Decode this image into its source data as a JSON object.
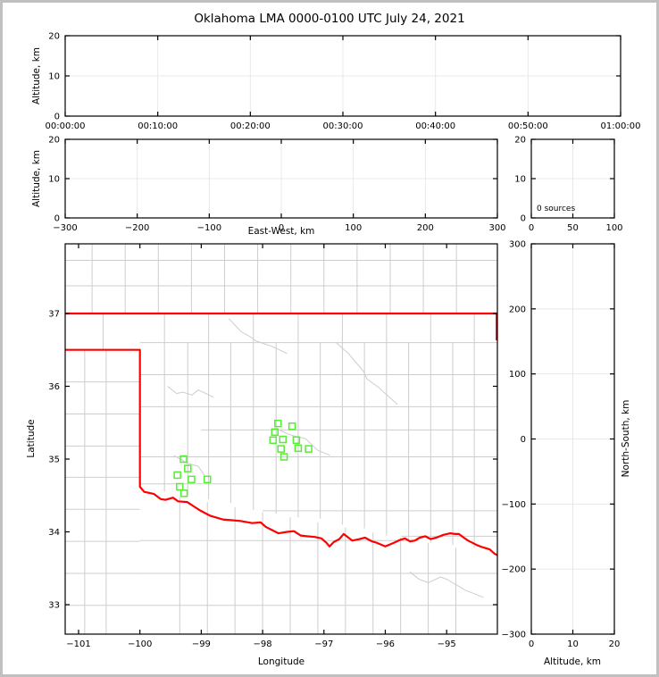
{
  "title": "Oklahoma LMA 0000-0100 UTC July 24, 2021",
  "colors": {
    "background": "#ffffff",
    "frame": "#c0c0c0",
    "axis": "#000000",
    "grid": "#e8e8e8",
    "county_line": "#cdcdcd",
    "state_border": "#ff0000",
    "source_marker": "#54ee33",
    "text": "#000000"
  },
  "chart_data": [
    {
      "id": "time_height",
      "type": "scatter",
      "title": "",
      "xlabel": "",
      "ylabel": "Altitude, km",
      "xlim": [
        0,
        60
      ],
      "ylim": [
        0,
        20
      ],
      "xticks": {
        "values": [
          0,
          10,
          20,
          30,
          40,
          50,
          60
        ],
        "labels": [
          "00:00:00",
          "00:10:00",
          "00:20:00",
          "00:30:00",
          "00:40:00",
          "00:50:00",
          "01:00:00"
        ]
      },
      "yticks": {
        "values": [
          0,
          10,
          20
        ],
        "labels": [
          "0",
          "10",
          "20"
        ]
      },
      "grid": true,
      "points": []
    },
    {
      "id": "ew_height",
      "type": "scatter",
      "title": "",
      "xlabel": "East-West, km",
      "ylabel": "Altitude, km",
      "xlim": [
        -300,
        300
      ],
      "ylim": [
        0,
        20
      ],
      "xticks": {
        "values": [
          -300,
          -200,
          -100,
          0,
          100,
          200,
          300
        ],
        "labels": [
          "−300",
          "−200",
          "−100",
          "0",
          "100",
          "200",
          "300"
        ]
      },
      "yticks": {
        "values": [
          0,
          10,
          20
        ],
        "labels": [
          "0",
          "10",
          "20"
        ]
      },
      "grid": true,
      "points": []
    },
    {
      "id": "alt_histogram",
      "type": "scatter",
      "title": "",
      "xlabel": "",
      "ylabel": "",
      "xlim": [
        0,
        100
      ],
      "ylim": [
        0,
        20
      ],
      "xticks": {
        "values": [
          0,
          50,
          100
        ],
        "labels": [
          "0",
          "50",
          "100"
        ]
      },
      "yticks": {
        "values": [
          0,
          10,
          20
        ],
        "labels": [
          "0",
          "10",
          "20"
        ]
      },
      "grid": true,
      "annotation": "0 sources",
      "points": []
    },
    {
      "id": "plan_map",
      "type": "scatter",
      "title": "",
      "xlabel": "Longitude",
      "ylabel": "Latitude",
      "xlim": [
        -101.218,
        -94.173
      ],
      "ylim": [
        32.595,
        37.957
      ],
      "xticks": {
        "values": [
          -101,
          -100,
          -99,
          -98,
          -97,
          -96,
          -95
        ],
        "labels": [
          "−101",
          "−100",
          "−99",
          "−98",
          "−97",
          "−96",
          "−95"
        ]
      },
      "yticks": {
        "values": [
          33,
          34,
          35,
          36,
          37
        ],
        "labels": [
          "33",
          "34",
          "35",
          "36",
          "37"
        ]
      },
      "grid": false,
      "marker": "open-square",
      "points": [
        [
          -97.75,
          35.49
        ],
        [
          -97.52,
          35.45
        ],
        [
          -97.8,
          35.37
        ],
        [
          -97.67,
          35.27
        ],
        [
          -97.83,
          35.26
        ],
        [
          -97.45,
          35.26
        ],
        [
          -97.7,
          35.14
        ],
        [
          -97.42,
          35.15
        ],
        [
          -97.25,
          35.14
        ],
        [
          -97.65,
          35.03
        ],
        [
          -99.29,
          35.0
        ],
        [
          -99.22,
          34.87
        ],
        [
          -99.39,
          34.78
        ],
        [
          -99.16,
          34.72
        ],
        [
          -98.9,
          34.72
        ],
        [
          -99.35,
          34.62
        ],
        [
          -99.28,
          34.53
        ]
      ]
    },
    {
      "id": "ns_height",
      "type": "scatter",
      "title": "",
      "xlabel": "Altitude, km",
      "ylabel": "North-South, km",
      "xlim": [
        0,
        20
      ],
      "ylim": [
        -300,
        300
      ],
      "xticks": {
        "values": [
          0,
          10,
          20
        ],
        "labels": [
          "0",
          "10",
          "20"
        ]
      },
      "yticks": {
        "values": [
          -300,
          -200,
          -100,
          0,
          100,
          200,
          300
        ],
        "labels": [
          "−300",
          "−200",
          "−100",
          "0",
          "100",
          "200",
          "300"
        ]
      },
      "grid": true,
      "points": []
    }
  ],
  "map_features": {
    "state_border": [
      [
        [
          -101.218,
          37.0
        ],
        [
          -94.173,
          37.0
        ]
      ],
      [
        [
          -94.185,
          37.0
        ],
        [
          -94.185,
          36.63
        ]
      ],
      [
        [
          -101.218,
          36.5
        ],
        [
          -100.0,
          36.5
        ],
        [
          -100.0,
          34.62
        ],
        [
          -99.93,
          34.55
        ],
        [
          -99.77,
          34.52
        ],
        [
          -99.66,
          34.45
        ],
        [
          -99.58,
          34.44
        ],
        [
          -99.46,
          34.47
        ],
        [
          -99.38,
          34.42
        ],
        [
          -99.23,
          34.41
        ],
        [
          -99.12,
          34.35
        ],
        [
          -99.01,
          34.29
        ],
        [
          -98.85,
          34.22
        ],
        [
          -98.65,
          34.17
        ],
        [
          -98.5,
          34.16
        ],
        [
          -98.36,
          34.15
        ],
        [
          -98.17,
          34.12
        ],
        [
          -98.03,
          34.13
        ],
        [
          -97.95,
          34.07
        ],
        [
          -97.86,
          34.03
        ],
        [
          -97.74,
          33.98
        ],
        [
          -97.6,
          34.0
        ],
        [
          -97.49,
          34.01
        ],
        [
          -97.38,
          33.95
        ],
        [
          -97.28,
          33.94
        ],
        [
          -97.15,
          33.93
        ],
        [
          -97.04,
          33.91
        ],
        [
          -96.96,
          33.85
        ],
        [
          -96.91,
          33.8
        ],
        [
          -96.84,
          33.86
        ],
        [
          -96.75,
          33.9
        ],
        [
          -96.68,
          33.97
        ],
        [
          -96.6,
          33.92
        ],
        [
          -96.54,
          33.88
        ],
        [
          -96.42,
          33.9
        ],
        [
          -96.33,
          33.92
        ],
        [
          -96.22,
          33.87
        ],
        [
          -96.14,
          33.85
        ],
        [
          -96.0,
          33.8
        ],
        [
          -95.86,
          33.85
        ],
        [
          -95.76,
          33.89
        ],
        [
          -95.68,
          33.91
        ],
        [
          -95.6,
          33.87
        ],
        [
          -95.52,
          33.88
        ],
        [
          -95.44,
          33.92
        ],
        [
          -95.35,
          33.94
        ],
        [
          -95.26,
          33.9
        ],
        [
          -95.17,
          33.92
        ],
        [
          -95.05,
          33.96
        ],
        [
          -94.94,
          33.98
        ],
        [
          -94.86,
          33.97
        ],
        [
          -94.8,
          33.97
        ],
        [
          -94.72,
          33.92
        ],
        [
          -94.65,
          33.88
        ],
        [
          -94.58,
          33.85
        ],
        [
          -94.51,
          33.82
        ],
        [
          -94.42,
          33.79
        ],
        [
          -94.3,
          33.76
        ],
        [
          -94.22,
          33.7
        ],
        [
          -94.173,
          33.68
        ]
      ]
    ],
    "county_lines": {
      "verticals": [
        [
          -100.78,
          37.0,
          37.957
        ],
        [
          -100.24,
          37.0,
          37.957
        ],
        [
          -99.7,
          37.0,
          37.957
        ],
        [
          -99.16,
          37.0,
          37.957
        ],
        [
          -98.62,
          37.0,
          37.957
        ],
        [
          -98.08,
          37.0,
          37.957
        ],
        [
          -97.54,
          37.0,
          37.957
        ],
        [
          -97.0,
          37.0,
          37.957
        ],
        [
          -96.46,
          37.0,
          37.957
        ],
        [
          -95.92,
          37.0,
          37.957
        ],
        [
          -95.38,
          37.0,
          37.957
        ],
        [
          -94.84,
          37.0,
          37.957
        ],
        [
          -100.6,
          36.5,
          37.0
        ],
        [
          -100.9,
          32.595,
          36.5
        ],
        [
          -100.55,
          32.595,
          36.5
        ],
        [
          -99.6,
          34.55,
          37.0
        ],
        [
          -99.22,
          34.5,
          36.6
        ],
        [
          -98.88,
          34.45,
          37.0
        ],
        [
          -98.52,
          34.4,
          36.6
        ],
        [
          -98.15,
          34.3,
          37.0
        ],
        [
          -97.78,
          34.25,
          36.6
        ],
        [
          -97.42,
          34.2,
          37.0
        ],
        [
          -97.06,
          34.18,
          36.6
        ],
        [
          -96.7,
          34.1,
          37.0
        ],
        [
          -96.34,
          34.05,
          36.6
        ],
        [
          -95.98,
          33.95,
          37.0
        ],
        [
          -95.62,
          33.9,
          36.6
        ],
        [
          -95.26,
          33.85,
          37.0
        ],
        [
          -94.9,
          33.82,
          36.6
        ],
        [
          -94.55,
          33.78,
          37.0
        ],
        [
          -99.35,
          32.595,
          34.48
        ],
        [
          -98.9,
          32.595,
          34.41
        ],
        [
          -98.45,
          32.595,
          34.34
        ],
        [
          -98.0,
          32.595,
          34.27
        ],
        [
          -97.55,
          32.595,
          34.2
        ],
        [
          -97.1,
          32.595,
          34.13
        ],
        [
          -96.65,
          32.595,
          34.06
        ],
        [
          -96.2,
          32.595,
          33.99
        ],
        [
          -95.75,
          32.595,
          33.92
        ],
        [
          -95.3,
          32.595,
          33.85
        ],
        [
          -94.85,
          32.595,
          33.78
        ]
      ],
      "horizontals": [
        [
          37.38,
          -101.218,
          -94.173
        ],
        [
          37.73,
          -101.218,
          -94.173
        ],
        [
          36.06,
          -101.218,
          -100.0
        ],
        [
          35.62,
          -101.218,
          -100.0
        ],
        [
          35.18,
          -101.218,
          -100.0
        ],
        [
          34.75,
          -101.218,
          -100.0
        ],
        [
          34.31,
          -101.218,
          -100.0
        ],
        [
          33.87,
          -101.218,
          -100.0
        ],
        [
          33.43,
          -101.218,
          -100.0
        ],
        [
          32.99,
          -101.218,
          -100.0
        ],
        [
          36.6,
          -100.0,
          -94.173
        ],
        [
          36.16,
          -100.0,
          -94.173
        ],
        [
          35.72,
          -100.0,
          -94.173
        ],
        [
          35.4,
          -99.0,
          -94.173
        ],
        [
          35.03,
          -100.0,
          -94.173
        ],
        [
          34.66,
          -100.0,
          -94.173
        ],
        [
          34.29,
          -98.0,
          -94.173
        ],
        [
          33.94,
          -95.74,
          -94.173
        ],
        [
          33.88,
          -100.0,
          -95.45
        ],
        [
          33.43,
          -100.0,
          -94.173
        ],
        [
          32.99,
          -100.0,
          -94.173
        ]
      ]
    },
    "rivers": [
      [
        [
          -98.55,
          36.93
        ],
        [
          -98.35,
          36.75
        ],
        [
          -98.2,
          36.68
        ],
        [
          -98.1,
          36.62
        ],
        [
          -97.85,
          36.55
        ],
        [
          -97.6,
          36.45
        ]
      ],
      [
        [
          -99.55,
          36.0
        ],
        [
          -99.4,
          35.9
        ],
        [
          -99.3,
          35.92
        ],
        [
          -99.15,
          35.88
        ],
        [
          -99.05,
          35.95
        ],
        [
          -98.8,
          35.85
        ]
      ],
      [
        [
          -97.78,
          35.42
        ],
        [
          -97.6,
          35.35
        ],
        [
          -97.5,
          35.32
        ],
        [
          -97.3,
          35.28
        ],
        [
          -97.2,
          35.2
        ],
        [
          -97.1,
          35.12
        ],
        [
          -96.9,
          35.05
        ]
      ],
      [
        [
          -99.45,
          35.05
        ],
        [
          -99.3,
          34.98
        ],
        [
          -99.25,
          34.95
        ],
        [
          -99.05,
          34.9
        ],
        [
          -98.95,
          34.78
        ]
      ],
      [
        [
          -96.8,
          36.6
        ],
        [
          -96.6,
          36.45
        ],
        [
          -96.5,
          36.35
        ],
        [
          -96.35,
          36.2
        ],
        [
          -96.3,
          36.1
        ],
        [
          -96.1,
          35.98
        ],
        [
          -96.0,
          35.9
        ],
        [
          -95.8,
          35.75
        ]
      ],
      [
        [
          -95.6,
          33.45
        ],
        [
          -95.45,
          33.35
        ],
        [
          -95.3,
          33.3
        ],
        [
          -95.1,
          33.38
        ],
        [
          -95.0,
          33.35
        ],
        [
          -94.8,
          33.25
        ],
        [
          -94.7,
          33.2
        ],
        [
          -94.4,
          33.1
        ]
      ]
    ]
  }
}
